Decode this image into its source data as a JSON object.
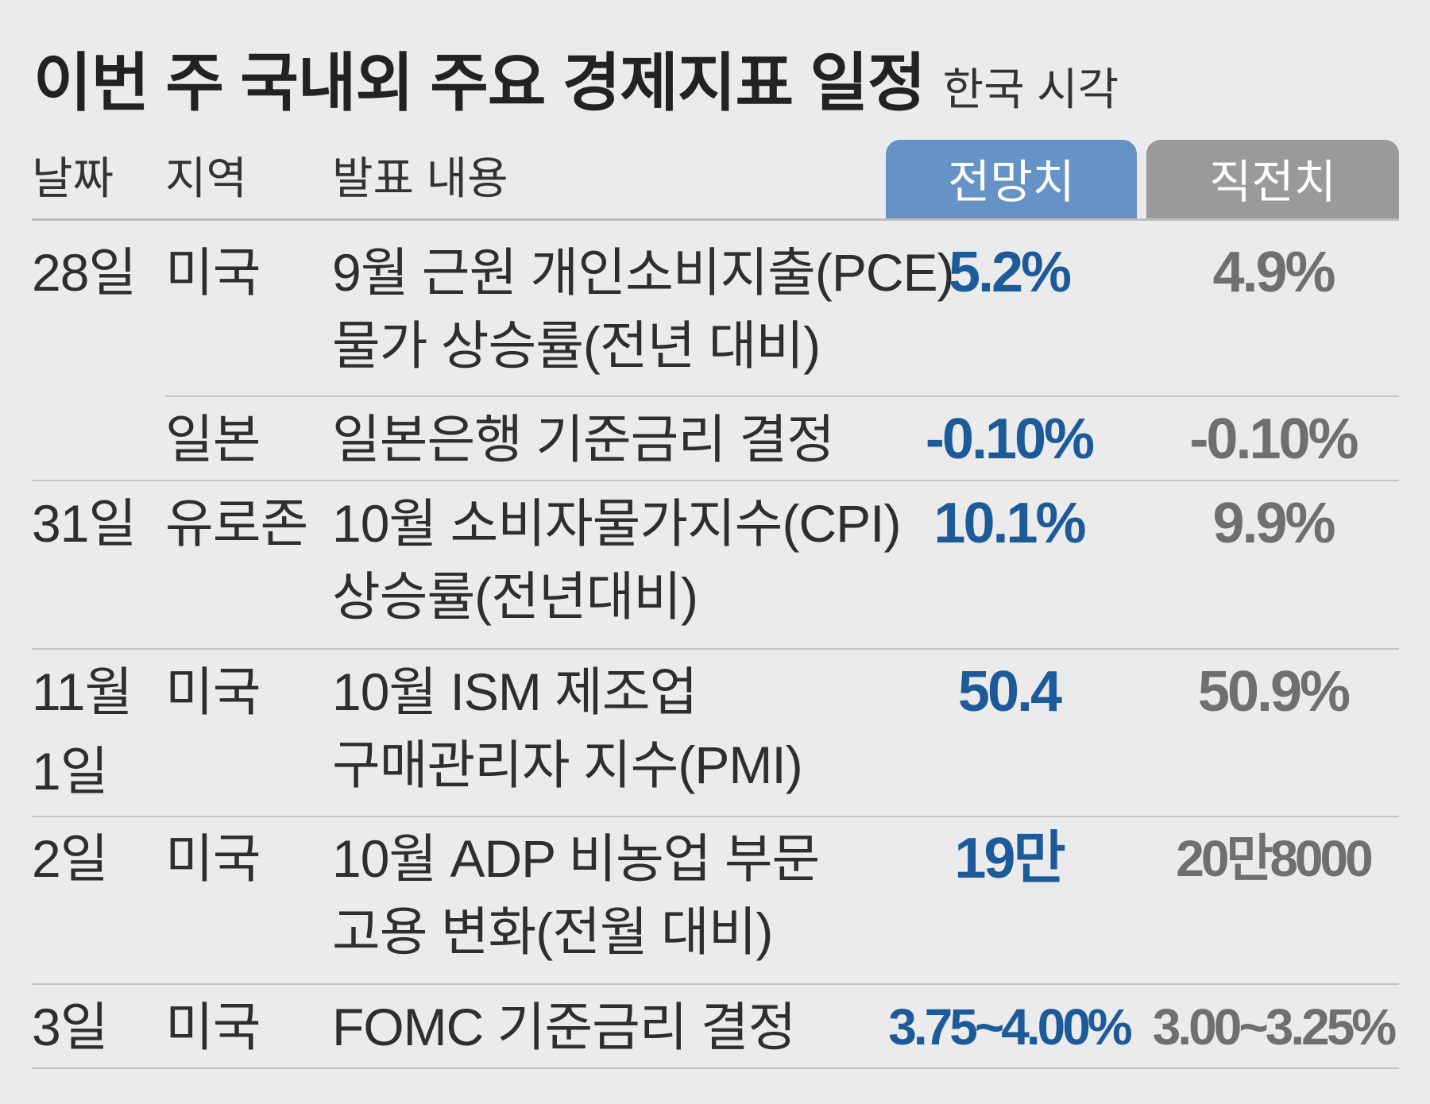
{
  "title": "이번 주 국내외 주요 경제지표 일정",
  "subtitle": "한국 시각",
  "columns": {
    "date": "날짜",
    "region": "지역",
    "description": "발표 내용",
    "forecast": "전망치",
    "previous": "직전치"
  },
  "rows": [
    {
      "date": "28일",
      "region": "미국",
      "description_line1": "9월 근원 개인소비지출(PCE)",
      "description_line2": "물가 상승률(전년 대비)",
      "forecast": "5.2%",
      "previous": "4.9%"
    },
    {
      "date": "",
      "region": "일본",
      "description_line1": "일본은행 기준금리 결정",
      "description_line2": "",
      "forecast": "-0.10%",
      "previous": "-0.10%"
    },
    {
      "date": "31일",
      "region": "유로존",
      "description_line1": "10월 소비자물가지수(CPI)",
      "description_line2": "상승률(전년대비)",
      "forecast": "10.1%",
      "previous": "9.9%"
    },
    {
      "date_line1": "11월",
      "date_line2": "1일",
      "region": "미국",
      "description_line1": "10월 ISM 제조업",
      "description_line2": "구매관리자 지수(PMI)",
      "forecast": "50.4",
      "previous": "50.9%"
    },
    {
      "date": "2일",
      "region": "미국",
      "description_line1": "10월 ADP 비농업 부문",
      "description_line2": "고용 변화(전월 대비)",
      "forecast": "19만",
      "previous": "20만8000"
    },
    {
      "date": "3일",
      "region": "미국",
      "description_line1": "FOMC 기준금리 결정",
      "description_line2": "",
      "forecast": "3.75~4.00%",
      "previous": "3.00~3.25%"
    }
  ],
  "colors": {
    "background": "#ebebeb",
    "forecast_header": "#6593c7",
    "previous_header": "#9a9a9a",
    "forecast_value": "#1d5a9a",
    "previous_value": "#6f6f6f"
  }
}
